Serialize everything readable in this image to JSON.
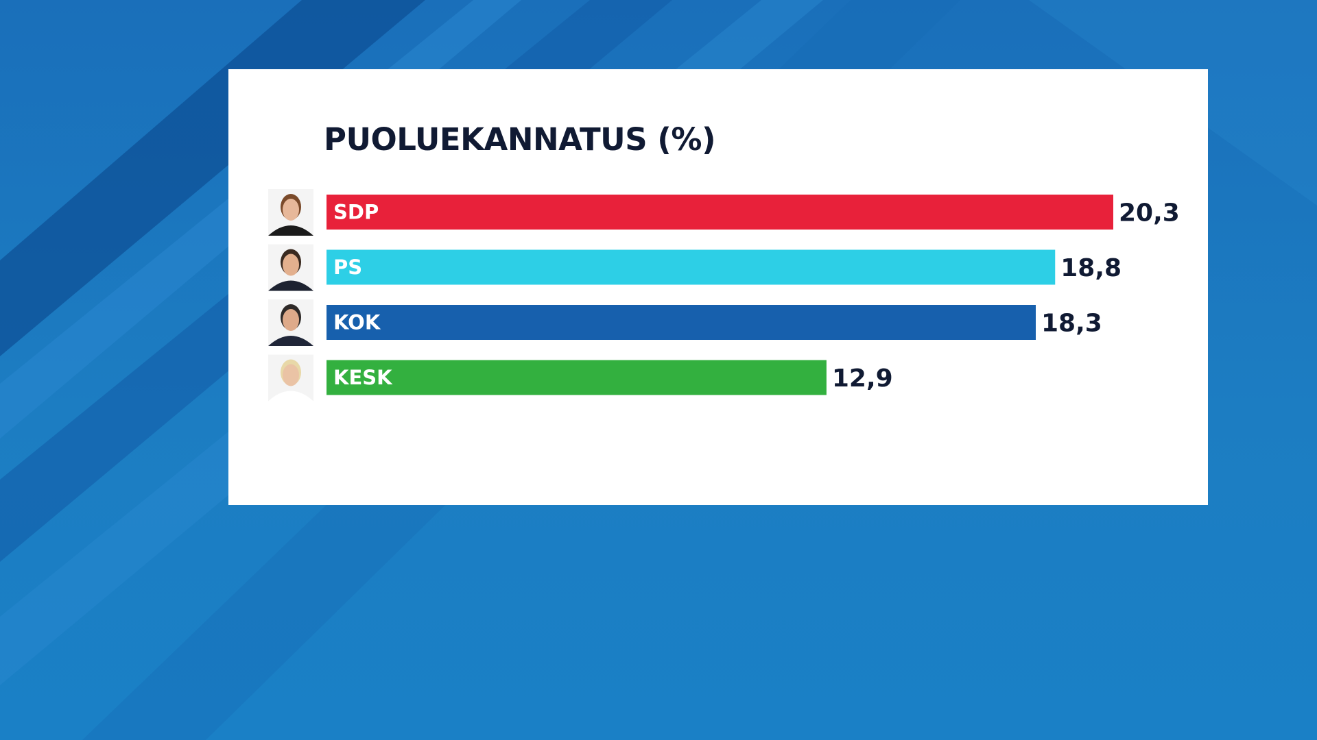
{
  "chart_data": {
    "type": "bar",
    "orientation": "horizontal",
    "title": "PUOLUEKANNATUS (%)",
    "categories": [
      "SDP",
      "PS",
      "KOK",
      "KESK"
    ],
    "values": [
      20.3,
      18.8,
      18.3,
      12.9
    ],
    "value_labels": [
      "20,3",
      "18,8",
      "18,3",
      "12,9"
    ],
    "colors": [
      "#e8213a",
      "#2dcfe6",
      "#1760ad",
      "#33b03f"
    ],
    "xlim": [
      0,
      20.3
    ],
    "grid": false,
    "legend": "none"
  },
  "theme": {
    "background": "#1a6fba",
    "card": "#ffffff",
    "text": "#101a33"
  },
  "icons": [
    "person-photo-sdp-icon",
    "person-photo-ps-icon",
    "person-photo-kok-icon",
    "person-photo-kesk-icon"
  ]
}
